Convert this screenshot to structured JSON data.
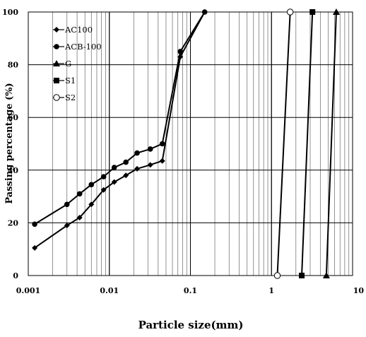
{
  "chart_data": {
    "type": "line",
    "xlabel": "Particle size(mm)",
    "ylabel": "Passing percentage (%)",
    "x_scale": "log",
    "xlim": [
      0.001,
      10
    ],
    "ylim": [
      0,
      100
    ],
    "x_tick_labels": [
      "0.001",
      "0.01",
      "0.1",
      "1",
      "10"
    ],
    "y_tick_labels": [
      "0",
      "20",
      "40",
      "60",
      "80",
      "100"
    ],
    "grid": true,
    "legend_position": "top-left",
    "series": [
      {
        "name": "AC100",
        "marker": "diamond",
        "x": [
          0.0012,
          0.003,
          0.0043,
          0.006,
          0.0085,
          0.0115,
          0.016,
          0.022,
          0.032,
          0.045,
          0.075,
          0.15
        ],
        "y": [
          10.5,
          19,
          22,
          27,
          32.5,
          35.5,
          38,
          40.5,
          42,
          43.5,
          83,
          100
        ]
      },
      {
        "name": "ACB-100",
        "marker": "circle",
        "x": [
          0.0012,
          0.003,
          0.0043,
          0.006,
          0.0085,
          0.0115,
          0.016,
          0.022,
          0.032,
          0.045,
          0.075,
          0.15
        ],
        "y": [
          19.5,
          27,
          31,
          34.5,
          37.5,
          41,
          43,
          46.5,
          48,
          50,
          85,
          100
        ]
      },
      {
        "name": "G",
        "marker": "triangle",
        "x": [
          4.75,
          6.3
        ],
        "y": [
          0,
          100
        ]
      },
      {
        "name": "S1",
        "marker": "square",
        "x": [
          2.36,
          3.2
        ],
        "y": [
          0,
          100
        ]
      },
      {
        "name": "S2",
        "marker": "open-circle",
        "x": [
          1.18,
          1.7
        ],
        "y": [
          0,
          100
        ]
      }
    ]
  }
}
